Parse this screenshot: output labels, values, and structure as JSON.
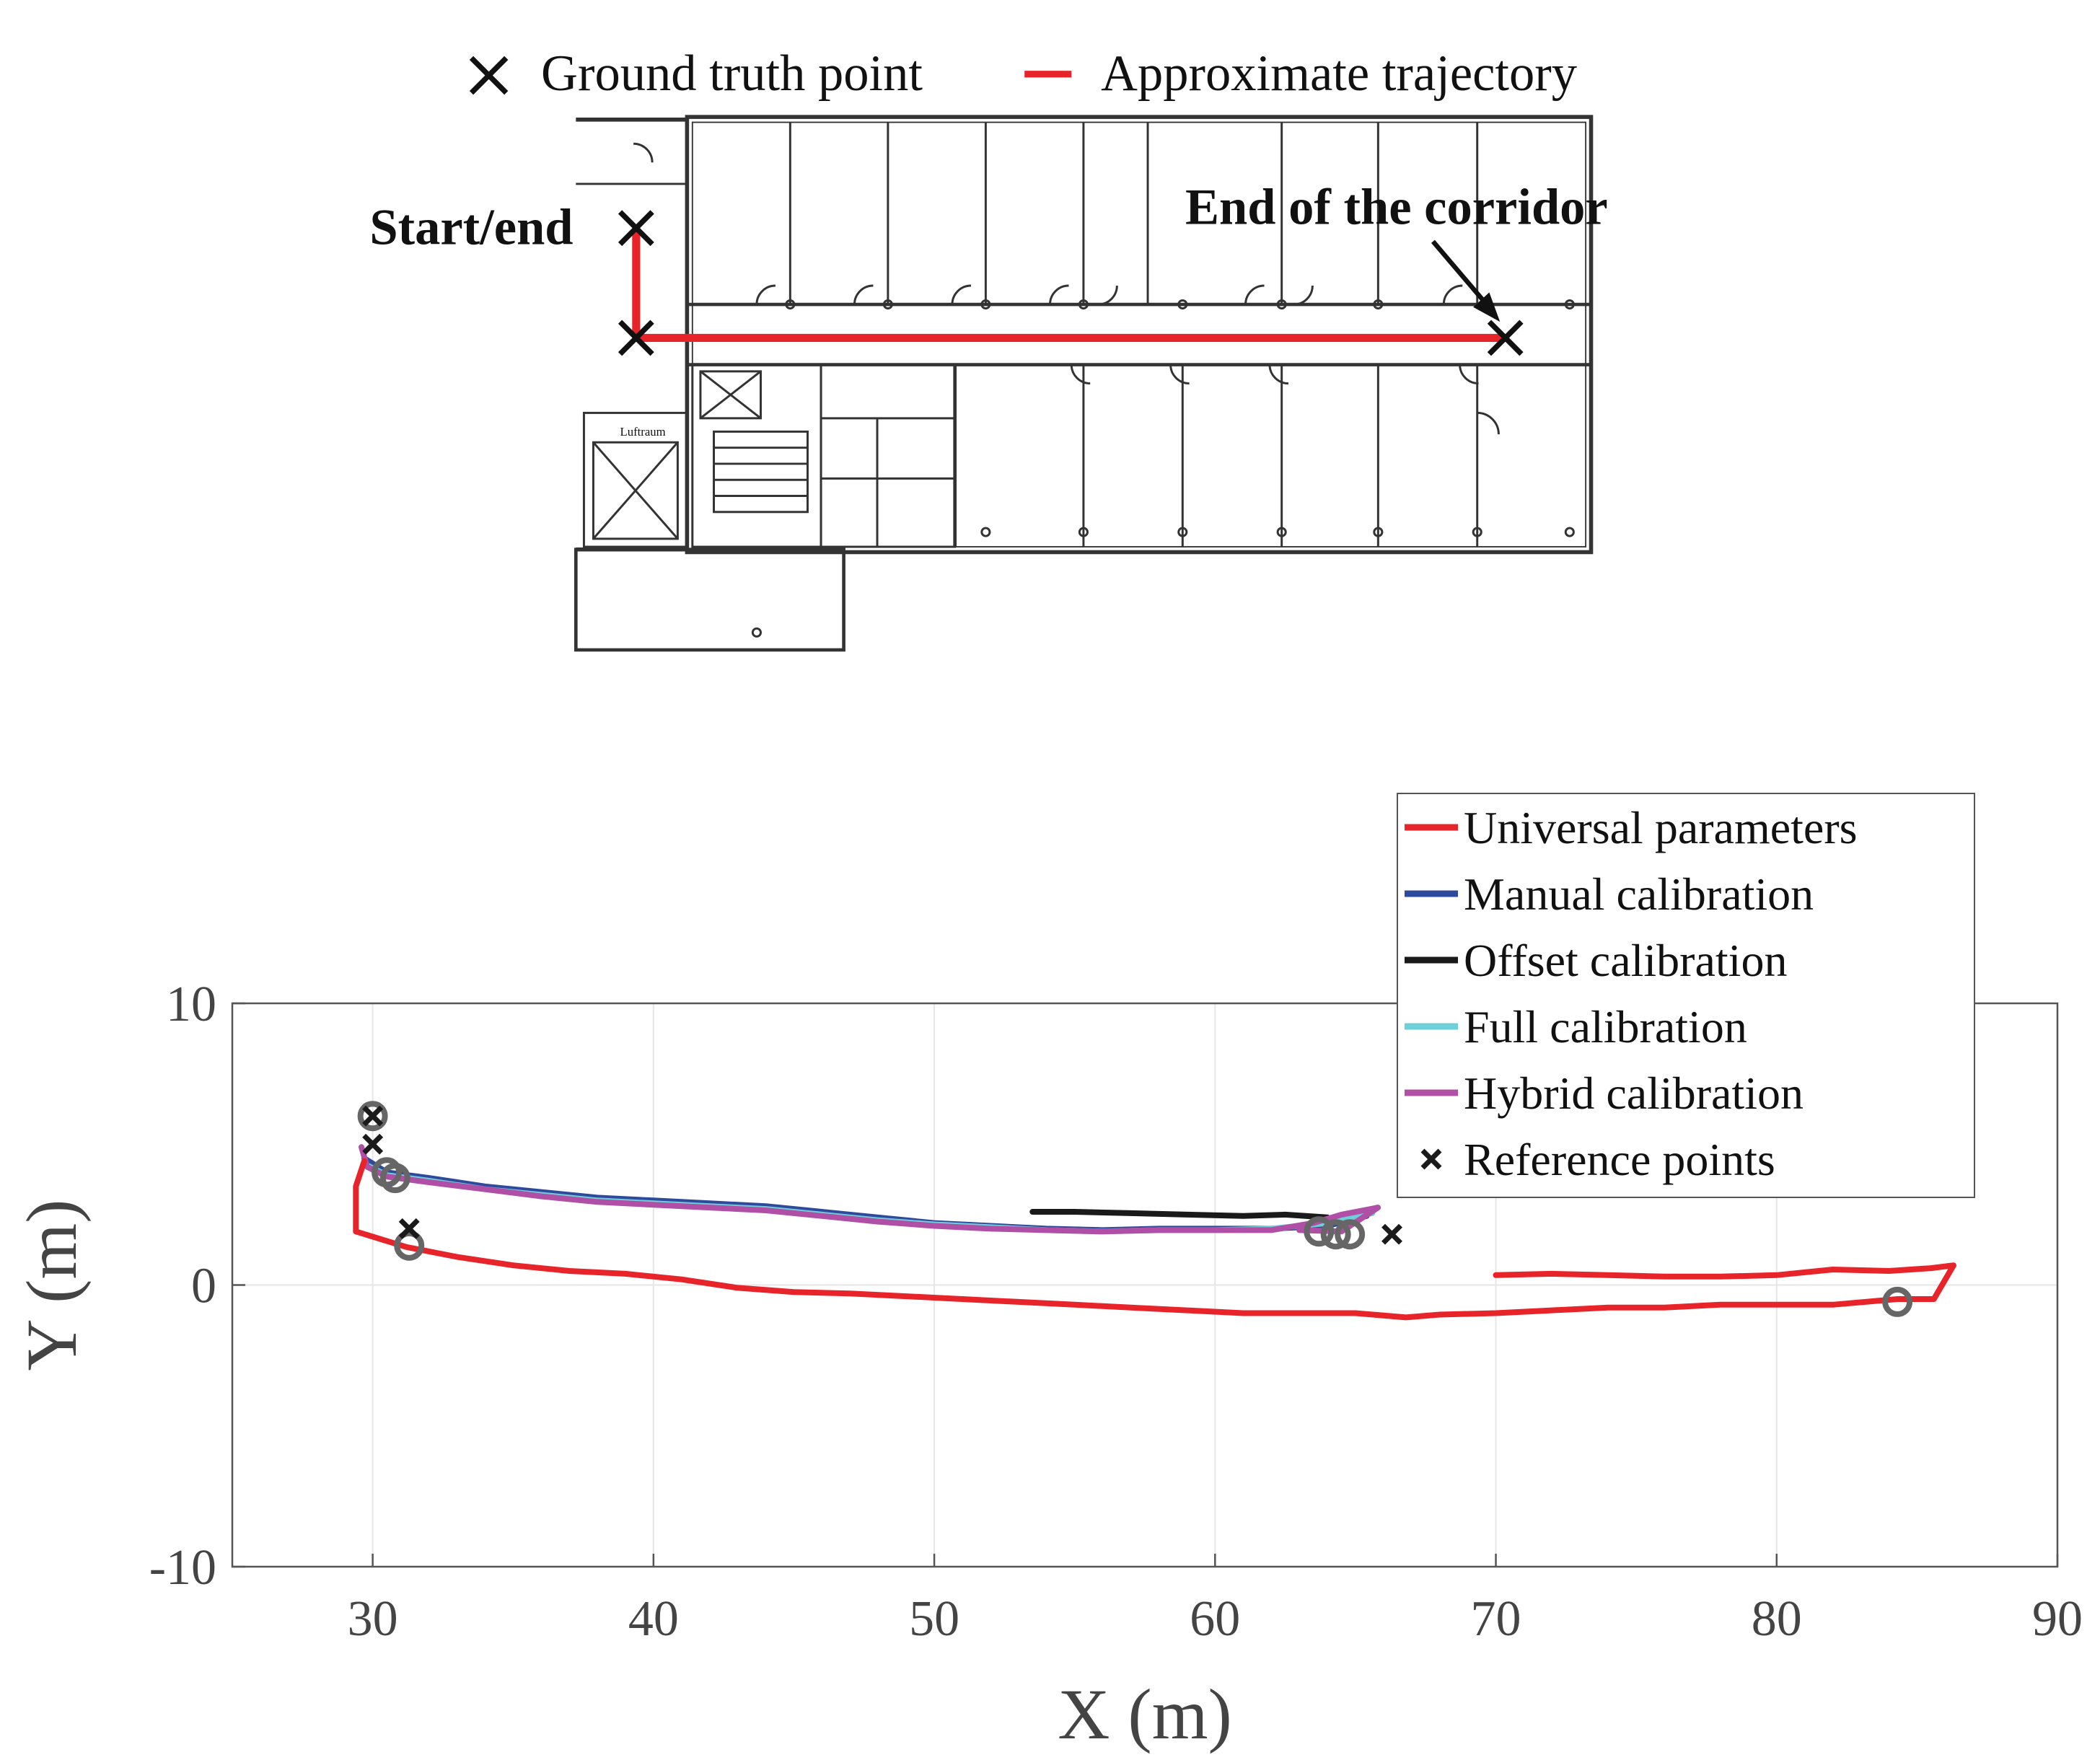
{
  "top_figure": {
    "legend": {
      "ground_truth_label": "Ground truth point",
      "trajectory_label": "Approximate trajectory"
    },
    "annotations": {
      "start_end": "Start/end",
      "end_corridor": "End of the corridor",
      "room_label": "Luftraum"
    },
    "colors": {
      "trajectory": "#e8242b",
      "marker": "#111111"
    }
  },
  "chart_data": {
    "type": "line",
    "title": "",
    "xlabel": "X (m)",
    "ylabel": "Y (m)",
    "xlim": [
      25,
      90
    ],
    "ylim": [
      -10,
      10
    ],
    "xticks": [
      "30",
      "40",
      "50",
      "60",
      "70",
      "80",
      "90"
    ],
    "yticks": [
      "10",
      "0",
      "-10"
    ],
    "grid": true,
    "legend_position": "top-right",
    "series": [
      {
        "name": "Universal parameters",
        "color": "#e8242b",
        "points": [
          [
            70,
            0.35
          ],
          [
            72,
            0.4
          ],
          [
            74,
            0.35
          ],
          [
            76,
            0.3
          ],
          [
            78,
            0.3
          ],
          [
            80,
            0.35
          ],
          [
            82,
            0.55
          ],
          [
            84,
            0.5
          ],
          [
            85.5,
            0.6
          ],
          [
            86.3,
            0.7
          ],
          [
            85.6,
            -0.5
          ],
          [
            84.3,
            -0.5
          ],
          [
            82,
            -0.7
          ],
          [
            80,
            -0.7
          ],
          [
            78,
            -0.7
          ],
          [
            76,
            -0.8
          ],
          [
            74,
            -0.8
          ],
          [
            72,
            -0.9
          ],
          [
            70,
            -1.0
          ],
          [
            68,
            -1.05
          ],
          [
            66.8,
            -1.15
          ],
          [
            65,
            -1.0
          ],
          [
            63,
            -1.0
          ],
          [
            61,
            -1.0
          ],
          [
            59,
            -0.9
          ],
          [
            57,
            -0.8
          ],
          [
            55,
            -0.7
          ],
          [
            53,
            -0.6
          ],
          [
            51,
            -0.5
          ],
          [
            49,
            -0.4
          ],
          [
            47,
            -0.3
          ],
          [
            45,
            -0.25
          ],
          [
            43,
            -0.1
          ],
          [
            41,
            0.2
          ],
          [
            39,
            0.4
          ],
          [
            37,
            0.5
          ],
          [
            35,
            0.7
          ],
          [
            33,
            1.0
          ],
          [
            31.2,
            1.35
          ],
          [
            29.4,
            1.9
          ],
          [
            29.4,
            3.5
          ],
          [
            29.7,
            4.4
          ]
        ]
      },
      {
        "name": "Manual calibration",
        "color": "#2e4a9c",
        "points": [
          [
            29.7,
            4.5
          ],
          [
            30.5,
            4.0
          ],
          [
            32,
            3.8
          ],
          [
            34,
            3.5
          ],
          [
            36,
            3.3
          ],
          [
            38,
            3.1
          ],
          [
            40,
            3.0
          ],
          [
            42,
            2.9
          ],
          [
            44,
            2.8
          ],
          [
            46,
            2.6
          ],
          [
            48,
            2.4
          ],
          [
            50,
            2.2
          ],
          [
            52,
            2.1
          ],
          [
            54,
            2.0
          ],
          [
            56,
            1.95
          ],
          [
            58,
            2.0
          ],
          [
            60,
            2.0
          ],
          [
            62,
            2.0
          ],
          [
            64,
            2.1
          ],
          [
            65.4,
            2.45
          ],
          [
            63.5,
            2.0
          ]
        ]
      },
      {
        "name": "Offset calibration",
        "color": "#1a1a1a",
        "points": [
          [
            53.5,
            2.6
          ],
          [
            55,
            2.6
          ],
          [
            57,
            2.55
          ],
          [
            59,
            2.5
          ],
          [
            61,
            2.45
          ],
          [
            62.5,
            2.5
          ],
          [
            64,
            2.4
          ]
        ]
      },
      {
        "name": "Full calibration",
        "color": "#6fcfd9",
        "points": [
          [
            29.7,
            4.3
          ],
          [
            30.5,
            3.9
          ],
          [
            32,
            3.7
          ],
          [
            34,
            3.4
          ],
          [
            36,
            3.2
          ],
          [
            38,
            3.0
          ],
          [
            40,
            2.9
          ],
          [
            42,
            2.8
          ],
          [
            44,
            2.7
          ],
          [
            46,
            2.5
          ],
          [
            48,
            2.3
          ],
          [
            50,
            2.15
          ],
          [
            52,
            2.05
          ],
          [
            54,
            1.95
          ],
          [
            56,
            1.9
          ],
          [
            58,
            1.95
          ],
          [
            60,
            1.95
          ],
          [
            62,
            2.0
          ],
          [
            64,
            2.2
          ],
          [
            65.6,
            2.55
          ]
        ]
      },
      {
        "name": "Hybrid calibration",
        "color": "#b04fa6",
        "points": [
          [
            29.6,
            4.9
          ],
          [
            29.8,
            4.2
          ],
          [
            30.5,
            3.85
          ],
          [
            32,
            3.65
          ],
          [
            34,
            3.4
          ],
          [
            36,
            3.15
          ],
          [
            38,
            2.95
          ],
          [
            40,
            2.85
          ],
          [
            42,
            2.75
          ],
          [
            44,
            2.65
          ],
          [
            46,
            2.45
          ],
          [
            48,
            2.25
          ],
          [
            50,
            2.1
          ],
          [
            52,
            2.0
          ],
          [
            54,
            1.95
          ],
          [
            56,
            1.9
          ],
          [
            58,
            1.95
          ],
          [
            60,
            1.95
          ],
          [
            62,
            1.95
          ],
          [
            63.5,
            2.2
          ],
          [
            64.5,
            2.5
          ],
          [
            65.8,
            2.75
          ],
          [
            64.5,
            1.9
          ],
          [
            63,
            1.95
          ]
        ]
      },
      {
        "name": "Reference points",
        "color": "#1a1a1a",
        "marker": "x",
        "points": [
          [
            30,
            6
          ],
          [
            30,
            5
          ],
          [
            31.3,
            2
          ],
          [
            66.3,
            1.8
          ]
        ]
      }
    ],
    "circle_markers": {
      "color": "#666666",
      "points": [
        [
          30,
          6
        ],
        [
          30.5,
          4
        ],
        [
          30.8,
          3.8
        ],
        [
          31.3,
          1.4
        ],
        [
          63.7,
          1.9
        ],
        [
          64.3,
          1.8
        ],
        [
          64.8,
          1.8
        ],
        [
          84.3,
          -0.6
        ]
      ]
    }
  }
}
